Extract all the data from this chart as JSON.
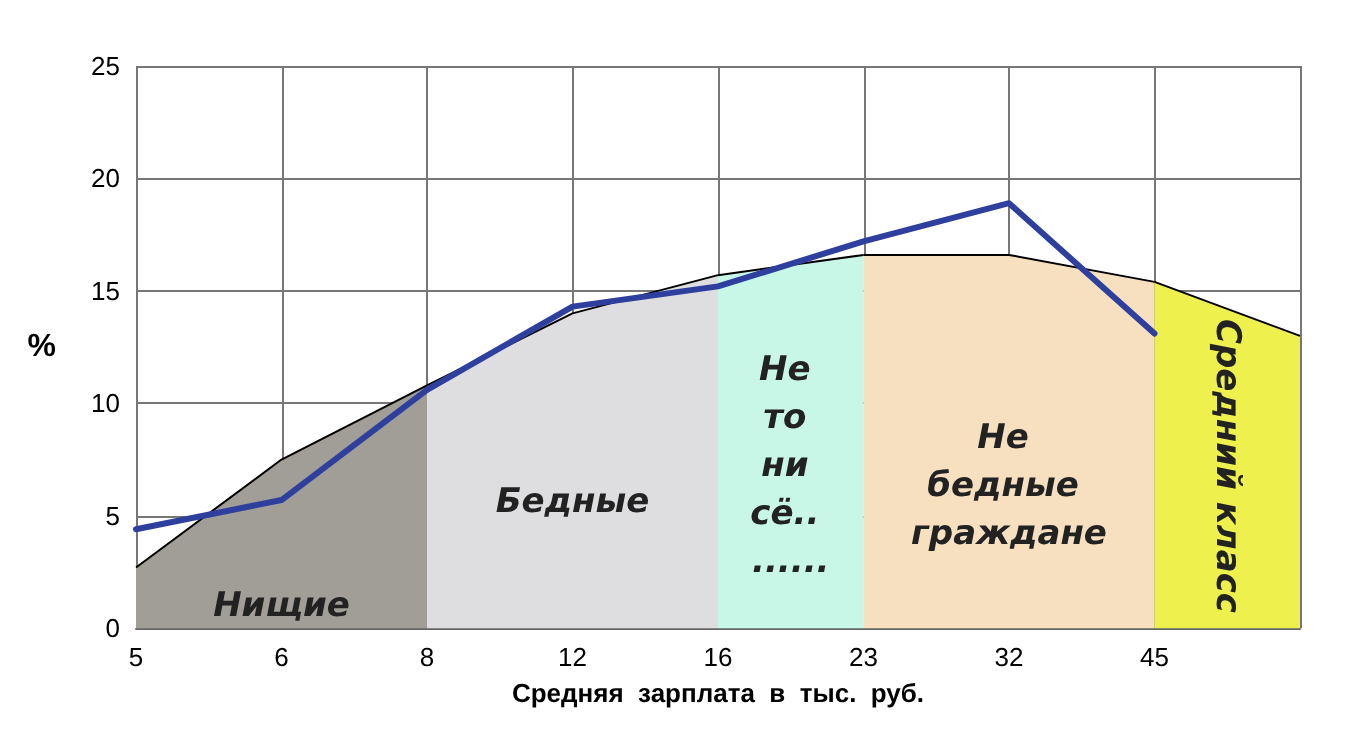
{
  "chart_data": {
    "type": "line",
    "xlabel": "Средняя  зарплата  в  тыс.  руб.",
    "ylabel": "%",
    "categories": [
      "5",
      "6",
      "8",
      "12",
      "16",
      "23",
      "32",
      "45",
      null
    ],
    "series": [
      {
        "type": "area",
        "name": "Нищие",
        "color": "#a09e96",
        "values": [
          2.7,
          7.5,
          10.8,
          null,
          null,
          null,
          null,
          null,
          null
        ]
      },
      {
        "type": "area",
        "name": "Бедные",
        "color": "#dedde0",
        "values": [
          null,
          null,
          10.8,
          14.0,
          15.7,
          null,
          null,
          null,
          null
        ]
      },
      {
        "type": "area",
        "name": "Не то ни сё.. ......",
        "color": "#c9f7e7",
        "values": [
          null,
          null,
          null,
          null,
          15.7,
          16.6,
          null,
          null,
          null
        ]
      },
      {
        "type": "area",
        "name": "Не бедные граждане",
        "color": "#f6e0c0",
        "values": [
          null,
          null,
          null,
          null,
          null,
          16.6,
          16.6,
          15.4,
          null
        ]
      },
      {
        "type": "area",
        "name": "Средний класс",
        "color": "#eef04e",
        "values": [
          null,
          null,
          null,
          null,
          null,
          null,
          null,
          15.4,
          13.0
        ]
      },
      {
        "color": "#2e3f9e",
        "values": [
          4.4,
          5.7,
          10.6,
          14.3,
          15.2,
          17.2,
          18.9,
          13.1,
          null
        ]
      }
    ],
    "ylim": [
      0,
      25
    ],
    "yticks": [
      0,
      5,
      10,
      15,
      20,
      25
    ],
    "grid": true,
    "legend": false,
    "marker": "none",
    "line_style": "solid"
  }
}
